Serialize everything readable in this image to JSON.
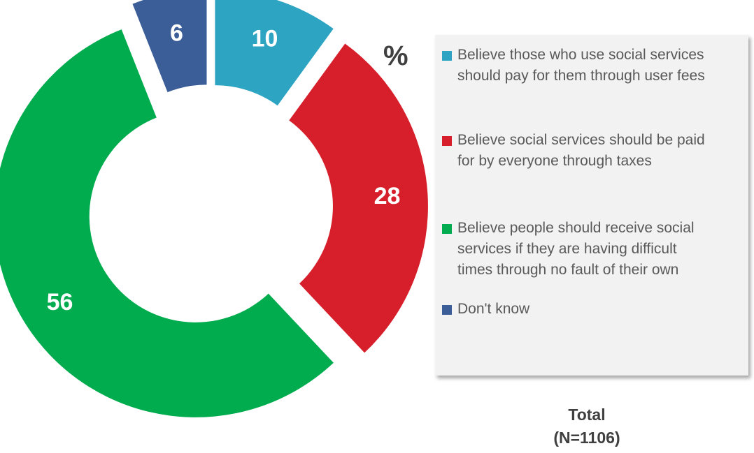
{
  "unit_label": "%",
  "footer": {
    "line1": "Total",
    "line2": "(N=1106)"
  },
  "chart_data": {
    "type": "pie",
    "variant": "donut-exploded",
    "slices": [
      {
        "name": "Believe those who use social services should pay for them through user fees",
        "value": 10,
        "color": "#2ea4c3"
      },
      {
        "name": "Believe social services should be paid for by everyone through taxes",
        "value": 28,
        "color": "#d71f2b"
      },
      {
        "name": "Believe people should receive social services if they are having difficult times through no fault of their own",
        "value": 56,
        "color": "#00ac4e"
      },
      {
        "name": "Don't know",
        "value": 6,
        "color": "#3b5d98"
      }
    ],
    "legend_position": "right",
    "data_label_color": "#ffffff"
  },
  "legend": {
    "items": [
      {
        "label": "Believe those who use social services\nshould pay for them through user fees",
        "color": "#2ea4c3"
      },
      {
        "label": "Believe social services should be paid\nfor by everyone through taxes",
        "color": "#d71f2b"
      },
      {
        "label": "Believe people should receive social\nservices if they are having difficult\ntimes through no fault of their own",
        "color": "#00ac4e"
      },
      {
        "label": "Don't know",
        "color": "#3b5d98"
      }
    ]
  }
}
